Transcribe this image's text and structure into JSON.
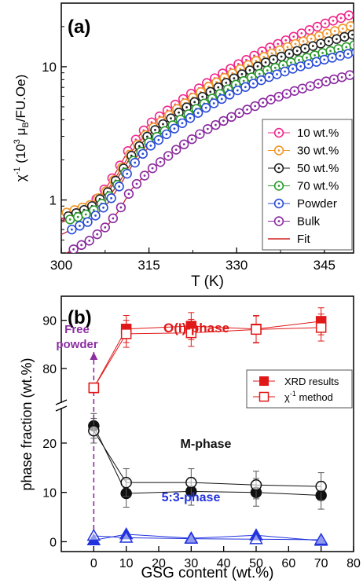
{
  "chart_data": [
    {
      "type": "scatter",
      "panel_label": "(a)",
      "xlabel": "T (K)",
      "ylabel": "χ⁻¹ (10³ μB/FU.Oe)",
      "ylabel_parts": {
        "chi": "χ",
        "sup1": "-1",
        "paren_open": " (10",
        "sup2": "3",
        "mu": " μ",
        "sub": "B",
        "rest": "/FU.Oe)"
      },
      "yscale": "log",
      "xlim": [
        300,
        350
      ],
      "ylim": [
        0.4,
        30
      ],
      "xticks": [
        300,
        315,
        330,
        345
      ],
      "xtick_labels": [
        "300",
        "315",
        "330",
        "345"
      ],
      "yticks": [
        1,
        10
      ],
      "ytick_labels": [
        "1",
        "10"
      ],
      "legend_position": "right",
      "series": [
        {
          "name": "10 wt.%",
          "color": "#f0288c",
          "fit": [
            [
              300,
              0.75
            ],
            [
              305,
              0.9
            ],
            [
              308,
              1.3
            ],
            [
              310,
              1.8
            ],
            [
              312,
              2.6
            ],
            [
              315,
              3.7
            ],
            [
              320,
              5.4
            ],
            [
              325,
              7.6
            ],
            [
              330,
              10.3
            ],
            [
              335,
              13.5
            ],
            [
              340,
              17.0
            ],
            [
              345,
              21.0
            ],
            [
              350,
              25.0
            ]
          ]
        },
        {
          "name": "30 wt.%",
          "color": "#f0962a",
          "fit": [
            [
              300,
              0.78
            ],
            [
              305,
              0.92
            ],
            [
              308,
              1.2
            ],
            [
              310,
              1.65
            ],
            [
              312,
              2.3
            ],
            [
              315,
              3.3
            ],
            [
              320,
              4.9
            ],
            [
              325,
              7.0
            ],
            [
              330,
              9.3
            ],
            [
              335,
              12.1
            ],
            [
              340,
              14.8
            ],
            [
              345,
              17.5
            ],
            [
              350,
              20.5
            ]
          ]
        },
        {
          "name": "50 wt.%",
          "color": "#222222",
          "fit": [
            [
              300,
              0.72
            ],
            [
              305,
              0.88
            ],
            [
              308,
              1.15
            ],
            [
              310,
              1.55
            ],
            [
              312,
              2.15
            ],
            [
              315,
              3.1
            ],
            [
              320,
              4.5
            ],
            [
              325,
              6.3
            ],
            [
              330,
              8.4
            ],
            [
              335,
              10.8
            ],
            [
              340,
              13.0
            ],
            [
              345,
              15.2
            ],
            [
              350,
              17.5
            ]
          ]
        },
        {
          "name": "70 wt.%",
          "color": "#2a9a2a",
          "fit": [
            [
              300,
              0.68
            ],
            [
              305,
              0.8
            ],
            [
              308,
              1.03
            ],
            [
              310,
              1.38
            ],
            [
              312,
              1.9
            ],
            [
              315,
              2.7
            ],
            [
              320,
              3.9
            ],
            [
              325,
              5.5
            ],
            [
              330,
              7.4
            ],
            [
              335,
              9.3
            ],
            [
              340,
              11.0
            ],
            [
              345,
              12.8
            ],
            [
              350,
              14.5
            ]
          ]
        },
        {
          "name": "Powder",
          "color": "#2a4bd8",
          "fit": [
            [
              300,
              0.55
            ],
            [
              305,
              0.7
            ],
            [
              308,
              0.95
            ],
            [
              310,
              1.28
            ],
            [
              312,
              1.78
            ],
            [
              315,
              2.5
            ],
            [
              320,
              3.6
            ],
            [
              325,
              5.0
            ],
            [
              330,
              6.6
            ],
            [
              335,
              8.2
            ],
            [
              340,
              9.8
            ],
            [
              345,
              11.3
            ],
            [
              350,
              12.8
            ]
          ]
        },
        {
          "name": "Bulk",
          "color": "#8a2aa0",
          "fit": [
            [
              300,
              0.38
            ],
            [
              305,
              0.5
            ],
            [
              308,
              0.65
            ],
            [
              310,
              0.85
            ],
            [
              312,
              1.2
            ],
            [
              315,
              1.65
            ],
            [
              320,
              2.45
            ],
            [
              325,
              3.4
            ],
            [
              330,
              4.4
            ],
            [
              335,
              5.5
            ],
            [
              340,
              6.6
            ],
            [
              345,
              7.7
            ],
            [
              350,
              8.8
            ]
          ]
        }
      ],
      "fit_legend": {
        "name": "Fit",
        "color": "#d42020"
      }
    },
    {
      "type": "scatter",
      "panel_label": "(b)",
      "xlabel": "GSG content (wt.%)",
      "ylabel": "phase fraction (wt.%)",
      "xlim": [
        -10,
        80
      ],
      "xticks": [
        0,
        10,
        20,
        30,
        40,
        50,
        60,
        70,
        80
      ],
      "xtick_labels": [
        "0",
        "10",
        "20",
        "30",
        "40",
        "50",
        "60",
        "70",
        "80"
      ],
      "y_broken_axis": {
        "lower_range": [
          -2,
          27
        ],
        "upper_range": [
          73,
          95
        ]
      },
      "yticks": [
        0,
        10,
        20,
        80,
        90
      ],
      "ytick_labels": [
        "0",
        "10",
        "20",
        "80",
        "90"
      ],
      "legend_position": "right",
      "legend": [
        {
          "name": "XRD results",
          "marker": "filled-square",
          "color": "#e01818"
        },
        {
          "name": "χ⁻¹ method",
          "name_parts": {
            "chi": "χ",
            "sup": "-1",
            "rest": " method"
          },
          "marker": "open-square",
          "color": "#e01818"
        }
      ],
      "annotations": [
        {
          "text": "O(I)-phase",
          "color": "#e01818"
        },
        {
          "text": "M-phase",
          "color": "#111111"
        },
        {
          "text": "5:3-phase",
          "color": "#2233dd"
        },
        {
          "text_lines": [
            "Free",
            "powder"
          ],
          "color": "#8b2fa0"
        }
      ],
      "x": [
        0,
        10,
        30,
        50,
        70
      ],
      "series": [
        {
          "phase": "O(I)",
          "method": "XRD",
          "marker": "filled-square",
          "color": "#e01818",
          "values": [
            76,
            88.2,
            88.8,
            88.2,
            89.8
          ],
          "errors": [
            0,
            2.8,
            2.8,
            2.8,
            2.8
          ]
        },
        {
          "phase": "O(I)",
          "method": "chi",
          "marker": "open-square",
          "color": "#e01818",
          "values": [
            76,
            87.2,
            87.4,
            88.1,
            88.5
          ],
          "errors": [
            0,
            2.8,
            2.8,
            2.8,
            2.8
          ]
        },
        {
          "phase": "M",
          "method": "XRD",
          "marker": "filled-circle",
          "color": "#111111",
          "values": [
            23.5,
            9.8,
            10.2,
            10.0,
            9.4
          ],
          "errors": [
            2.5,
            2.8,
            2.8,
            2.8,
            2.8
          ]
        },
        {
          "phase": "M",
          "method": "chi",
          "marker": "open-circle",
          "color": "#111111",
          "values": [
            22.5,
            12.0,
            12.0,
            11.5,
            11.2
          ],
          "errors": [
            2.5,
            2.8,
            2.8,
            2.8,
            2.8
          ]
        },
        {
          "phase": "5:3",
          "method": "XRD",
          "marker": "filled-triangle",
          "color": "#2233dd",
          "values": [
            0.3,
            1.5,
            0.7,
            1.3,
            0.2
          ],
          "errors": [
            0,
            0,
            0,
            0,
            0
          ]
        },
        {
          "phase": "5:3",
          "method": "chi",
          "marker": "open-triangle",
          "color": "#2233dd",
          "values": [
            1.2,
            0.8,
            0.6,
            0.5,
            0.4
          ],
          "errors": [
            0,
            0,
            0,
            0,
            0
          ]
        }
      ]
    }
  ]
}
